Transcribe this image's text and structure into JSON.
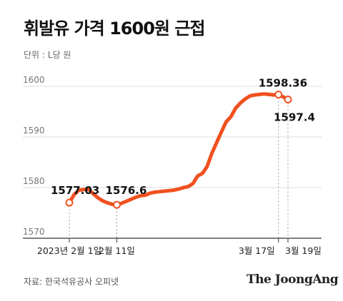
{
  "header": {
    "title": "휘발유 가격 1600원 근접",
    "unit": "단위 : L당 원"
  },
  "footer": {
    "source": "자료: 한국석유공사 오피넷",
    "logo": "The JoongAng"
  },
  "colors": {
    "line": "#f0501e",
    "grid": "#dddddd",
    "axis": "#333333"
  },
  "chart_data": {
    "type": "line",
    "title": "휘발유 가격 1600원 근접",
    "ylabel": "",
    "xlabel": "",
    "ylim": [
      1570,
      1600
    ],
    "yticks": [
      1570,
      1580,
      1590,
      1600
    ],
    "grid": true,
    "xticks": [
      {
        "label": "2023년 2월 1일",
        "index": 0
      },
      {
        "label": "2월 11일",
        "index": 10
      },
      {
        "label": "3월 17일",
        "index": 44
      },
      {
        "label": "3월 19일",
        "index": 46
      }
    ],
    "series": [
      {
        "name": "",
        "values": [
          1577.03,
          1578.6,
          1579.5,
          1579.6,
          1579.7,
          1578.8,
          1578.0,
          1577.4,
          1577.0,
          1576.7,
          1576.6,
          1576.9,
          1577.3,
          1577.7,
          1578.1,
          1578.4,
          1578.5,
          1578.9,
          1579.1,
          1579.2,
          1579.3,
          1579.4,
          1579.5,
          1579.7,
          1580.0,
          1580.2,
          1580.8,
          1582.3,
          1582.8,
          1584.2,
          1586.8,
          1588.9,
          1591.0,
          1593.0,
          1594.0,
          1595.7,
          1596.7,
          1597.5,
          1598.1,
          1598.3,
          1598.4,
          1598.5,
          1598.4,
          1598.3,
          1598.36,
          1597.9,
          1597.4
        ]
      }
    ],
    "annotations": [
      {
        "index": 0,
        "label": "1577.03"
      },
      {
        "index": 10,
        "label": "1576.6"
      },
      {
        "index": 44,
        "label": "1598.36"
      },
      {
        "index": 46,
        "label": "1597.4"
      }
    ]
  }
}
